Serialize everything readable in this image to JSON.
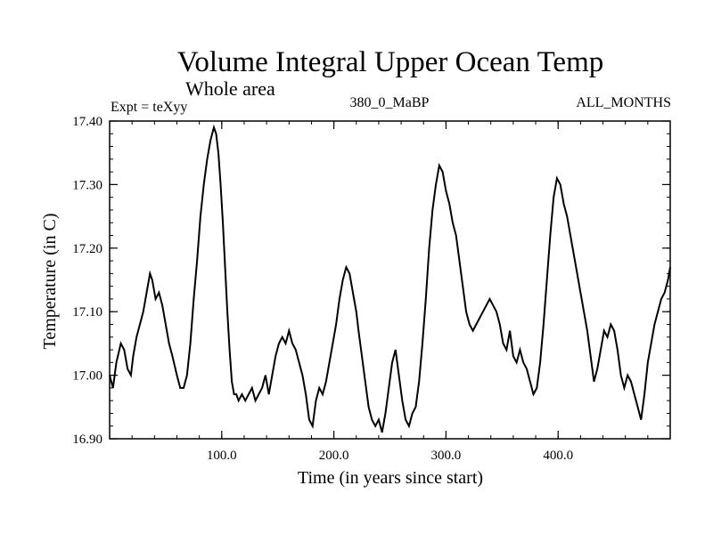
{
  "chart_data": {
    "type": "line",
    "title": "Volume Integral Upper Ocean Temp",
    "subtitle": "Whole area",
    "annotations": {
      "left": "Expt = teXyy",
      "center": "380_0_MaBP",
      "right": "ALL_MONTHS"
    },
    "xlabel": "Time (in years since start)",
    "ylabel": "Temperature (in C)",
    "xlim": [
      0,
      500
    ],
    "ylim": [
      16.9,
      17.4
    ],
    "x_ticks": [
      100,
      200,
      300,
      400
    ],
    "x_tick_labels": [
      "100.0",
      "200.0",
      "300.0",
      "400.0"
    ],
    "y_ticks": [
      16.9,
      17.0,
      17.1,
      17.2,
      17.3,
      17.4
    ],
    "y_tick_labels": [
      "16.90",
      "17.00",
      "17.10",
      "17.20",
      "17.30",
      "17.40"
    ],
    "grid": false,
    "line_color": "#000000",
    "series": [
      {
        "x": [
          0,
          3,
          6,
          10,
          13,
          16,
          19,
          21,
          24,
          27,
          30,
          33,
          36,
          38,
          41,
          44,
          47,
          50,
          53,
          56,
          60,
          63,
          66,
          69,
          72,
          75,
          78,
          81,
          84,
          87,
          90,
          93,
          95,
          97,
          99,
          101,
          103,
          105,
          107,
          109,
          111,
          113,
          115,
          118,
          121,
          124,
          127,
          130,
          133,
          136,
          139,
          142,
          145,
          148,
          151,
          154,
          157,
          160,
          163,
          166,
          169,
          172,
          175,
          178,
          181,
          184,
          187,
          190,
          193,
          196,
          199,
          202,
          205,
          208,
          211,
          214,
          216,
          218,
          220,
          222,
          225,
          228,
          231,
          234,
          237,
          240,
          243,
          246,
          249,
          252,
          255,
          258,
          261,
          264,
          267,
          270,
          273,
          276,
          279,
          282,
          285,
          288,
          291,
          294,
          297,
          300,
          303,
          306,
          309,
          312,
          315,
          318,
          321,
          324,
          327,
          330,
          333,
          336,
          339,
          342,
          345,
          348,
          351,
          354,
          357,
          360,
          363,
          366,
          369,
          372,
          375,
          378,
          381,
          384,
          387,
          390,
          393,
          396,
          399,
          402,
          405,
          408,
          411,
          414,
          417,
          420,
          423,
          426,
          429,
          432,
          435,
          438,
          441,
          444,
          447,
          450,
          453,
          456,
          459,
          462,
          465,
          468,
          471,
          474,
          477,
          480,
          483,
          486,
          489,
          492,
          495,
          498,
          500
        ],
        "values": [
          17.0,
          16.98,
          17.02,
          17.05,
          17.04,
          17.01,
          17.0,
          17.03,
          17.06,
          17.08,
          17.1,
          17.13,
          17.16,
          17.15,
          17.12,
          17.13,
          17.11,
          17.08,
          17.05,
          17.03,
          17.0,
          16.98,
          16.98,
          17.0,
          17.05,
          17.12,
          17.18,
          17.25,
          17.3,
          17.34,
          17.37,
          17.39,
          17.38,
          17.35,
          17.3,
          17.24,
          17.17,
          17.1,
          17.04,
          16.99,
          16.97,
          16.97,
          16.96,
          16.97,
          16.96,
          16.97,
          16.98,
          16.96,
          16.97,
          16.98,
          17.0,
          16.97,
          17.0,
          17.03,
          17.05,
          17.06,
          17.05,
          17.07,
          17.05,
          17.04,
          17.02,
          17.0,
          16.97,
          16.93,
          16.92,
          16.96,
          16.98,
          16.97,
          16.99,
          17.02,
          17.05,
          17.08,
          17.12,
          17.15,
          17.17,
          17.16,
          17.14,
          17.12,
          17.1,
          17.07,
          17.03,
          16.99,
          16.95,
          16.93,
          16.92,
          16.93,
          16.91,
          16.94,
          16.98,
          17.02,
          17.04,
          17.0,
          16.96,
          16.93,
          16.92,
          16.94,
          16.95,
          16.99,
          17.05,
          17.12,
          17.2,
          17.26,
          17.3,
          17.33,
          17.32,
          17.29,
          17.27,
          17.24,
          17.22,
          17.18,
          17.14,
          17.1,
          17.08,
          17.07,
          17.08,
          17.09,
          17.1,
          17.11,
          17.12,
          17.11,
          17.1,
          17.08,
          17.05,
          17.04,
          17.07,
          17.03,
          17.02,
          17.04,
          17.02,
          17.01,
          16.99,
          16.97,
          16.98,
          17.02,
          17.08,
          17.15,
          17.22,
          17.28,
          17.31,
          17.3,
          17.27,
          17.25,
          17.22,
          17.19,
          17.16,
          17.13,
          17.1,
          17.07,
          17.03,
          16.99,
          17.01,
          17.04,
          17.07,
          17.06,
          17.08,
          17.07,
          17.04,
          17.0,
          16.98,
          17.0,
          16.99,
          16.97,
          16.95,
          16.93,
          16.97,
          17.02,
          17.05,
          17.08,
          17.1,
          17.12,
          17.13,
          17.15,
          17.17
        ]
      }
    ]
  }
}
